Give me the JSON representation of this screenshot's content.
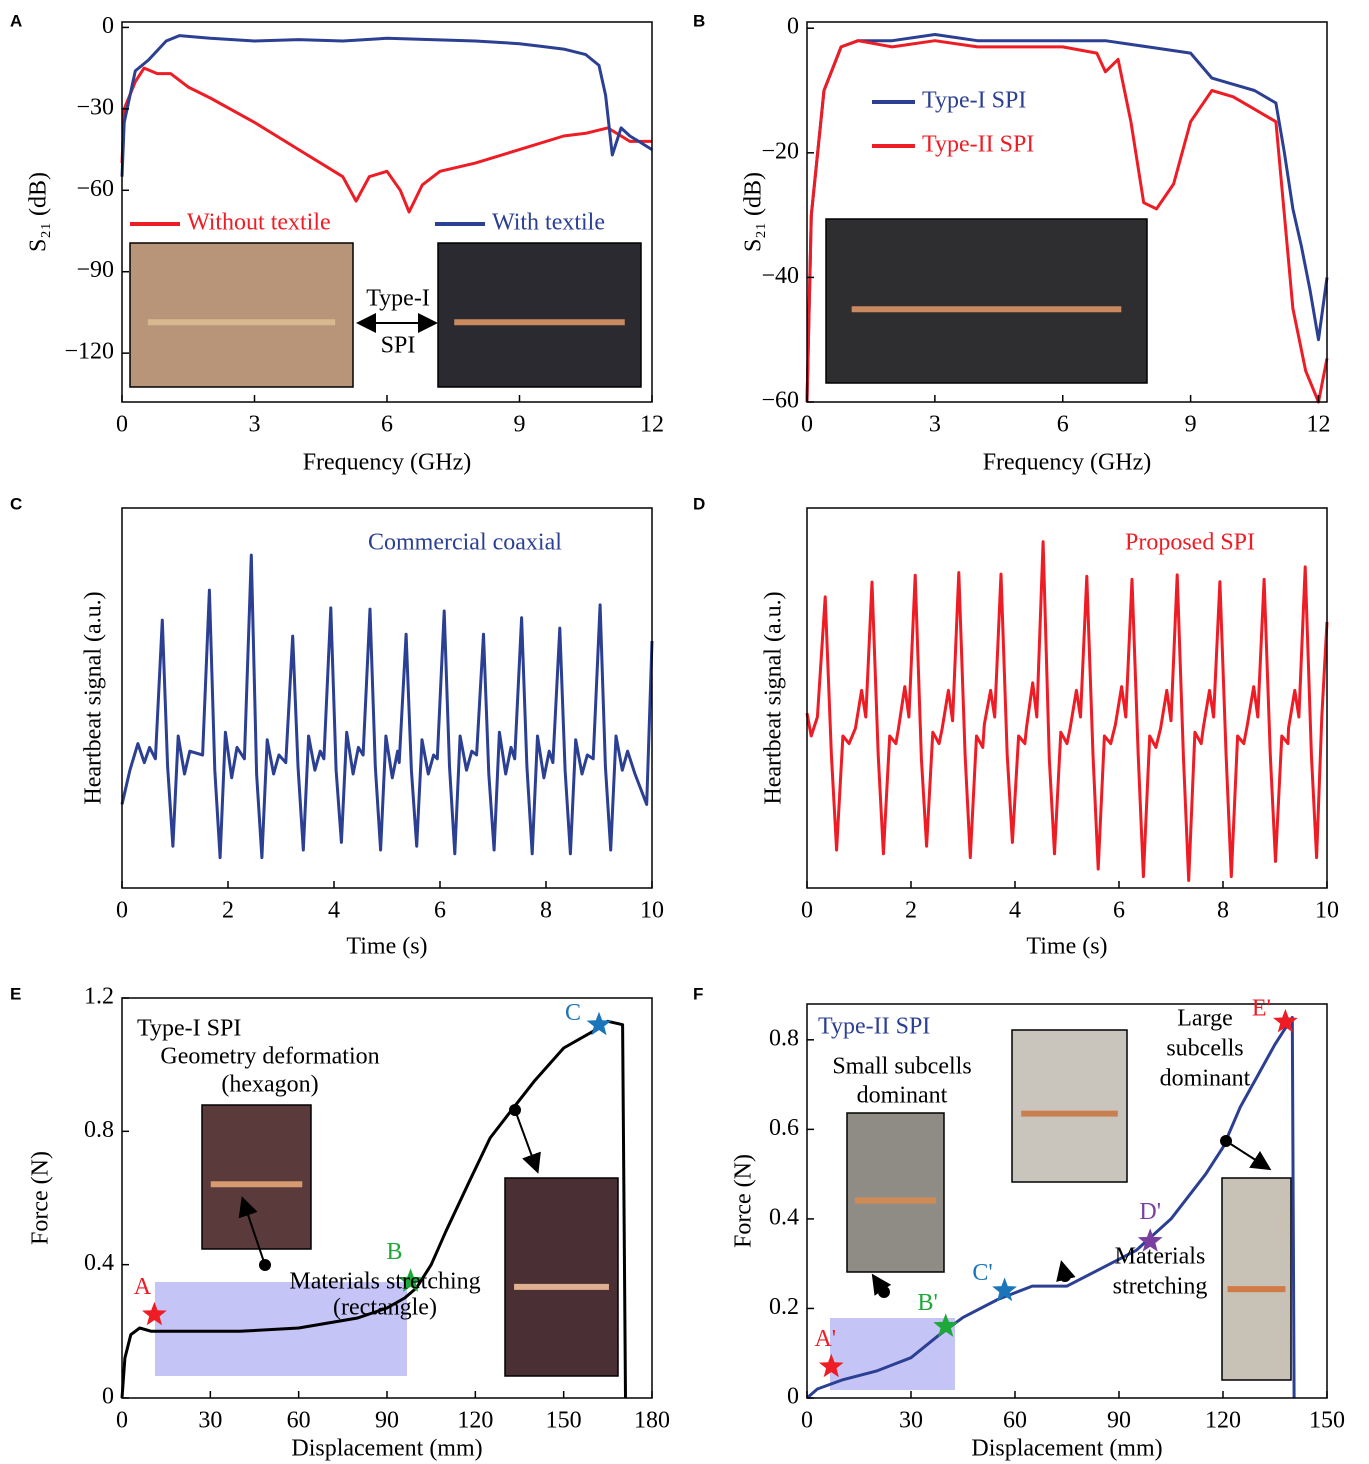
{
  "chart_data": [
    {
      "panel": "A",
      "type": "line",
      "x_label": "Frequency (GHz)",
      "y_label": "S₂₁ (dB)",
      "xlim": [
        0,
        12
      ],
      "ylim": [
        -138,
        2
      ],
      "xticks": [
        0,
        3,
        6,
        9,
        12
      ],
      "yticks": [
        0,
        {
          "value": -30,
          "label": "−30"
        },
        {
          "value": -60,
          "label": "−60"
        },
        {
          "value": -90,
          "label": "−90"
        },
        {
          "value": -120,
          "label": "−120"
        }
      ],
      "series": [
        {
          "name": "Without textile",
          "color": "#ee1c24",
          "x": [
            0,
            0.05,
            0.3,
            0.5,
            0.8,
            1.1,
            1.5,
            2,
            3,
            4,
            5,
            5.3,
            5.6,
            6,
            6.3,
            6.5,
            6.8,
            7.2,
            8,
            9,
            10,
            10.5,
            11,
            11.5,
            12
          ],
          "values": [
            -50,
            -30,
            -20,
            -15,
            -17,
            -17,
            -22,
            -26,
            -35,
            -45,
            -55,
            -64,
            -55,
            -53,
            -60,
            -68,
            -58,
            -53,
            -50,
            -45,
            -40,
            -39,
            -37,
            -42,
            -42
          ]
        },
        {
          "name": "With textile",
          "color": "#2b3f93",
          "x": [
            0,
            0.05,
            0.3,
            0.6,
            1,
            1.3,
            2,
            3,
            4,
            5,
            6,
            7,
            8,
            9,
            9.5,
            10,
            10.5,
            10.8,
            10.95,
            11.1,
            11.3,
            11.5,
            11.7,
            12
          ],
          "values": [
            -55,
            -35,
            -16,
            -12,
            -5,
            -3,
            -4,
            -5,
            -4.5,
            -5,
            -4,
            -4.5,
            -5,
            -6,
            -7,
            -8,
            -10,
            -14,
            -25,
            -47,
            -37,
            -40,
            -42,
            -45
          ]
        }
      ],
      "annotations": [
        {
          "text": "Type-I"
        },
        {
          "text": "SPI"
        }
      ]
    },
    {
      "panel": "B",
      "type": "line",
      "x_label": "Frequency (GHz)",
      "y_label": "S₂₁ (dB)",
      "xlim": [
        0,
        12.2
      ],
      "ylim": [
        -60,
        1
      ],
      "xticks": [
        0,
        3,
        6,
        9,
        12
      ],
      "yticks": [
        0,
        {
          "value": -20,
          "label": "−20"
        },
        {
          "value": -40,
          "label": "−40"
        },
        {
          "value": -60,
          "label": "−60"
        }
      ],
      "series": [
        {
          "name": "Type-I SPI",
          "color": "#2b3f93",
          "x": [
            0,
            0.1,
            0.4,
            0.8,
            1.2,
            2,
            3,
            4,
            5,
            6,
            7,
            8,
            9,
            9.5,
            10,
            10.5,
            11,
            11.2,
            11.4,
            11.6,
            11.8,
            12,
            12.2
          ],
          "values": [
            -60,
            -30,
            -10,
            -3,
            -2,
            -2,
            -1,
            -2,
            -2,
            -2,
            -2,
            -3,
            -4,
            -8,
            -9,
            -10,
            -12,
            -20,
            -29,
            -35,
            -42,
            -50,
            -40
          ]
        },
        {
          "name": "Type-II SPI",
          "color": "#ee1c24",
          "x": [
            0,
            0.1,
            0.4,
            0.8,
            1.2,
            2,
            3,
            4,
            5,
            6,
            6.8,
            7,
            7.3,
            7.6,
            7.9,
            8.2,
            8.6,
            9,
            9.5,
            10,
            10.5,
            11,
            11.2,
            11.4,
            11.7,
            12,
            12.2
          ],
          "values": [
            -60,
            -30,
            -10,
            -3,
            -2,
            -3,
            -2,
            -3,
            -3,
            -3,
            -4,
            -7,
            -5,
            -15,
            -28,
            -29,
            -25,
            -15,
            -10,
            -11,
            -13,
            -15,
            -30,
            -45,
            -55,
            -60,
            -53
          ]
        }
      ]
    },
    {
      "panel": "C",
      "type": "line",
      "x_label": "Time (s)",
      "y_label": "Heartbeat signal (a.u.)",
      "xlim": [
        0,
        10
      ],
      "ylim": [
        0,
        1
      ],
      "xticks": [
        0,
        2,
        4,
        6,
        8,
        10
      ],
      "series": [
        {
          "color": "#2b3f93",
          "x": [
            0,
            0.15,
            0.3,
            0.42,
            0.52,
            0.63,
            0.76,
            0.86,
            0.96,
            1.06,
            1.18,
            1.28,
            1.52,
            1.65,
            1.75,
            1.85,
            1.95,
            2.07,
            2.17,
            2.31,
            2.44,
            2.54,
            2.64,
            2.74,
            2.86,
            2.96,
            3.09,
            3.22,
            3.32,
            3.42,
            3.52,
            3.64,
            3.74,
            3.81,
            3.94,
            4.04,
            4.14,
            4.24,
            4.36,
            4.46,
            4.55,
            4.68,
            4.78,
            4.88,
            4.98,
            5.1,
            5.2,
            5.23,
            5.36,
            5.46,
            5.56,
            5.66,
            5.78,
            5.88,
            5.95,
            6.08,
            6.18,
            6.28,
            6.38,
            6.5,
            6.6,
            6.69,
            6.82,
            6.92,
            7.02,
            7.12,
            7.24,
            7.34,
            7.41,
            7.54,
            7.64,
            7.74,
            7.84,
            7.96,
            8.06,
            8.13,
            8.26,
            8.36,
            8.46,
            8.56,
            8.68,
            8.78,
            8.89,
            9.02,
            9.12,
            9.22,
            9.32,
            9.44,
            9.54,
            9.68,
            9.9,
            10
          ],
          "values": [
            0.22,
            0.31,
            0.38,
            0.33,
            0.37,
            0.34,
            0.705,
            0.32,
            0.11,
            0.4,
            0.3,
            0.36,
            0.35,
            0.784,
            0.31,
            0.08,
            0.41,
            0.29,
            0.37,
            0.34,
            0.876,
            0.3,
            0.08,
            0.39,
            0.3,
            0.35,
            0.33,
            0.663,
            0.32,
            0.1,
            0.4,
            0.31,
            0.36,
            0.34,
            0.737,
            0.31,
            0.12,
            0.41,
            0.3,
            0.37,
            0.35,
            0.734,
            0.32,
            0.1,
            0.4,
            0.29,
            0.36,
            0.33,
            0.668,
            0.31,
            0.11,
            0.39,
            0.3,
            0.35,
            0.34,
            0.729,
            0.32,
            0.09,
            0.4,
            0.31,
            0.36,
            0.35,
            0.668,
            0.3,
            0.1,
            0.41,
            0.3,
            0.37,
            0.34,
            0.711,
            0.32,
            0.09,
            0.4,
            0.29,
            0.36,
            0.33,
            0.684,
            0.31,
            0.09,
            0.39,
            0.3,
            0.35,
            0.34,
            0.745,
            0.32,
            0.1,
            0.4,
            0.31,
            0.36,
            0.3,
            0.22,
            0.65
          ]
        }
      ],
      "annotations": [
        {
          "text": "Commercial coaxial",
          "color": "#2b3f93"
        }
      ]
    },
    {
      "panel": "D",
      "type": "line",
      "x_label": "Time (s)",
      "y_label": "Heartbeat signal (a.u.)",
      "xlim": [
        0,
        10
      ],
      "ylim": [
        0,
        1
      ],
      "xticks": [
        0,
        2,
        4,
        6,
        8,
        10
      ],
      "series": [
        {
          "color": "#ee1c24",
          "x": [
            0,
            0.08,
            0.2,
            0.35,
            0.47,
            0.57,
            0.69,
            0.81,
            0.93,
            1.05,
            1.13,
            1.25,
            1.37,
            1.47,
            1.59,
            1.71,
            1.76,
            1.88,
            1.96,
            2.08,
            2.2,
            2.3,
            2.42,
            2.54,
            2.6,
            2.72,
            2.8,
            2.92,
            3.04,
            3.14,
            3.26,
            3.38,
            3.41,
            3.53,
            3.61,
            3.73,
            3.85,
            3.95,
            4.07,
            4.19,
            4.22,
            4.34,
            4.42,
            4.54,
            4.66,
            4.76,
            4.88,
            5.0,
            5.06,
            5.18,
            5.26,
            5.38,
            5.5,
            5.6,
            5.72,
            5.84,
            5.93,
            6.05,
            6.13,
            6.25,
            6.37,
            6.47,
            6.59,
            6.71,
            6.8,
            6.92,
            7.0,
            7.12,
            7.24,
            7.34,
            7.46,
            7.58,
            7.62,
            7.74,
            7.82,
            7.94,
            8.06,
            8.16,
            8.28,
            8.4,
            8.47,
            8.59,
            8.67,
            8.79,
            8.91,
            9.01,
            9.13,
            9.25,
            9.26,
            9.38,
            9.46,
            9.58,
            9.7,
            9.8,
            9.9,
            10
          ],
          "values": [
            0.46,
            0.4,
            0.45,
            0.766,
            0.35,
            0.1,
            0.4,
            0.38,
            0.42,
            0.52,
            0.45,
            0.805,
            0.35,
            0.09,
            0.4,
            0.38,
            0.42,
            0.53,
            0.45,
            0.823,
            0.34,
            0.11,
            0.41,
            0.38,
            0.42,
            0.52,
            0.44,
            0.83,
            0.35,
            0.08,
            0.4,
            0.37,
            0.43,
            0.52,
            0.45,
            0.826,
            0.35,
            0.12,
            0.4,
            0.38,
            0.42,
            0.54,
            0.45,
            0.911,
            0.34,
            0.09,
            0.41,
            0.38,
            0.42,
            0.52,
            0.45,
            0.82,
            0.35,
            0.05,
            0.4,
            0.38,
            0.43,
            0.53,
            0.45,
            0.812,
            0.35,
            0.03,
            0.4,
            0.37,
            0.42,
            0.52,
            0.44,
            0.824,
            0.34,
            0.02,
            0.41,
            0.38,
            0.42,
            0.52,
            0.45,
            0.806,
            0.35,
            0.03,
            0.4,
            0.38,
            0.43,
            0.53,
            0.45,
            0.812,
            0.35,
            0.07,
            0.4,
            0.38,
            0.42,
            0.52,
            0.45,
            0.845,
            0.35,
            0.08,
            0.45,
            0.7
          ]
        }
      ],
      "annotations": [
        {
          "text": "Proposed SPI",
          "color": "#ee1c24"
        }
      ]
    },
    {
      "panel": "E",
      "type": "line",
      "x_label": "Displacement (mm)",
      "y_label": "Force (N)",
      "xlim": [
        0,
        180
      ],
      "ylim": [
        0,
        1.2
      ],
      "xticks": [
        0,
        30,
        60,
        90,
        120,
        150,
        180
      ],
      "yticks": [
        0,
        0.4,
        0.8,
        1.2
      ],
      "series": [
        {
          "color": "#000000",
          "x": [
            0,
            1,
            3,
            6,
            10,
            20,
            40,
            60,
            80,
            90,
            96,
            100,
            105,
            110,
            118,
            125,
            132,
            140,
            150,
            160,
            165,
            170,
            171
          ],
          "values": [
            0,
            0.12,
            0.19,
            0.21,
            0.2,
            0.2,
            0.2,
            0.21,
            0.24,
            0.27,
            0.3,
            0.33,
            0.4,
            0.5,
            0.65,
            0.78,
            0.86,
            0.95,
            1.05,
            1.1,
            1.13,
            1.12,
            0
          ]
        }
      ],
      "markers": [
        {
          "label": "A",
          "x": 11,
          "y": 0.25,
          "color": "#ee1c24"
        },
        {
          "label": "B",
          "x": 98,
          "y": 0.35,
          "color": "#1fa83a"
        },
        {
          "label": "C",
          "x": 162,
          "y": 1.12,
          "color": "#1b75bb"
        }
      ],
      "annotations": [
        {
          "text": "Type-I SPI"
        },
        {
          "text": "Geometry deformation"
        },
        {
          "text": "(hexagon)"
        },
        {
          "text": "Materials stretching"
        },
        {
          "text": "(rectangle)"
        }
      ]
    },
    {
      "panel": "F",
      "type": "line",
      "x_label": "Displacement (mm)",
      "y_label": "Force (N)",
      "xlim": [
        0,
        150
      ],
      "ylim": [
        0,
        0.88
      ],
      "xticks": [
        0,
        30,
        60,
        90,
        120,
        150
      ],
      "yticks": [
        0,
        0.2,
        0.4,
        0.6,
        0.8
      ],
      "series": [
        {
          "color": "#2b3f93",
          "x": [
            0,
            3,
            10,
            20,
            30,
            38,
            45,
            55,
            65,
            75,
            85,
            95,
            105,
            115,
            120,
            125,
            130,
            135,
            140,
            140.5
          ],
          "values": [
            0,
            0.02,
            0.04,
            0.06,
            0.09,
            0.14,
            0.18,
            0.22,
            0.25,
            0.25,
            0.29,
            0.33,
            0.4,
            0.5,
            0.56,
            0.65,
            0.72,
            0.79,
            0.85,
            0
          ]
        }
      ],
      "markers": [
        {
          "label": "A'",
          "x": 7,
          "y": 0.07,
          "color": "#ee1c24"
        },
        {
          "label": "B'",
          "x": 40,
          "y": 0.16,
          "color": "#1fa83a"
        },
        {
          "label": "C'",
          "x": 57,
          "y": 0.24,
          "color": "#1b75bb"
        },
        {
          "label": "D'",
          "x": 99,
          "y": 0.35,
          "color": "#7b3fa0"
        },
        {
          "label": "E'",
          "x": 138,
          "y": 0.84,
          "color": "#ee1c24"
        }
      ],
      "annotations": [
        {
          "text": "Type-II SPI",
          "color": "#2b3f93"
        },
        {
          "text": "Small subcells"
        },
        {
          "text": "dominant"
        },
        {
          "text": "Large"
        },
        {
          "text": "subcells"
        },
        {
          "text": "dominant"
        },
        {
          "text": "Materials"
        },
        {
          "text": "stretching"
        }
      ]
    }
  ]
}
